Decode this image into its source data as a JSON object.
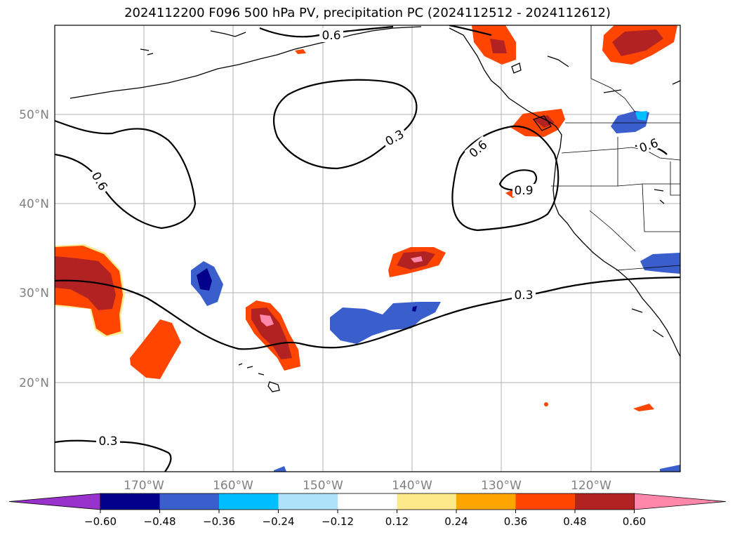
{
  "title": "2024112200 F096 500 hPa PV, precipitation PC (2024112512 - 2024112612)",
  "lat_labels": [
    "50°N",
    "40°N",
    "30°N",
    "20°N"
  ],
  "lon_labels": [
    "170°W",
    "160°W",
    "150°W",
    "140°W",
    "130°W",
    "120°W"
  ],
  "contour_labels": {
    "pv_06_north": "0.6",
    "pv_03_gyre": "0.3",
    "pv_06_west": "0.6",
    "pv_06_east": "0.6",
    "pv_09": "0.9",
    "pv_03_mid": "0.3",
    "pv_03_south": "0.3",
    "pv_06_land": "0.6"
  },
  "colorbar": {
    "ticks": [
      "−0.60",
      "−0.48",
      "−0.36",
      "−0.24",
      "−0.12",
      "0.12",
      "0.24",
      "0.36",
      "0.48",
      "0.60"
    ],
    "colors": [
      "#9932cc",
      "#00008b",
      "#3a5fcd",
      "#00bfff",
      "#aee4fb",
      "#ffffff",
      "#fde98a",
      "#ffa500",
      "#ff4500",
      "#b22222",
      "#ff88aa"
    ]
  }
}
